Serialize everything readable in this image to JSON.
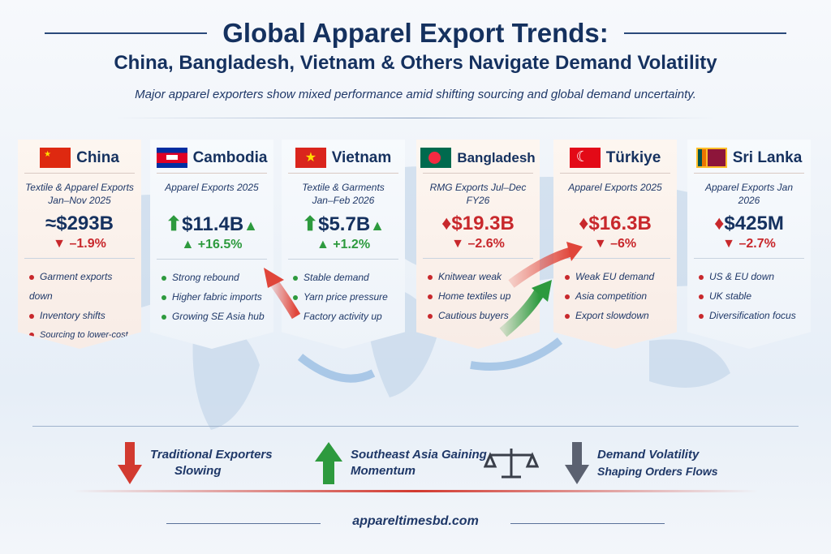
{
  "header": {
    "title": "Global Apparel Export Trends:",
    "subtitle": "China, Bangladesh, Vietnam & Others Navigate Demand Volatility",
    "tagline": "Major apparel exporters show mixed performance amid shifting sourcing and global demand uncertainty."
  },
  "cards": [
    {
      "country": "China",
      "label1": "Textile & Apparel Exports",
      "label2": "Jan–Nov 2025",
      "value": "≈$293B",
      "change": "–1.9%",
      "trend": "down",
      "bullets": [
        "Garment exports down",
        "Inventory shifts",
        "Sourcing to lower-cost hubs"
      ]
    },
    {
      "country": "Cambodia",
      "label1": "Apparel Exports 2025",
      "label2": "",
      "value": "$11.4B",
      "change": "+16.5%",
      "trend": "up",
      "bullets": [
        "Strong rebound",
        "Higher fabric imports",
        "Growing SE Asia hub"
      ]
    },
    {
      "country": "Vietnam",
      "label1": "Textile & Garments",
      "label2": "Jan–Feb 2026",
      "value": "$5.7B",
      "change": "+1.2%",
      "trend": "up",
      "bullets": [
        "Stable demand",
        "Yarn price pressure",
        "Factory activity up"
      ]
    },
    {
      "country": "Bangladesh",
      "label1": "RMG Exports Jul–Dec FY26",
      "label2": "",
      "value": "$19.3B",
      "change": "–2.6%",
      "trend": "down",
      "bullets": [
        "Knitwear weak",
        "Home textiles up",
        "Cautious buyers"
      ]
    },
    {
      "country": "Türkiye",
      "label1": "Apparel Exports 2025",
      "label2": "",
      "value": "$16.3B",
      "change": "–6%",
      "trend": "down",
      "bullets": [
        "Weak EU demand",
        "Asia competition",
        "Export slowdown"
      ]
    },
    {
      "country": "Sri Lanka",
      "label1": "Apparel Exports Jan 2026",
      "label2": "",
      "value": "$425M",
      "change": "–2.7%",
      "trend": "down",
      "bullets": [
        "US & EU down",
        "UK stable",
        "Diversification focus"
      ]
    }
  ],
  "bottom": [
    {
      "line1": "Traditional Exporters",
      "line2": "Slowing"
    },
    {
      "line1": "Southeast Asia Gaining",
      "line2": "Momentum"
    },
    {
      "line1": "Demand Volatility",
      "line2": "Shaping Orders Flows"
    }
  ],
  "footer": "appareltimesbd.com",
  "colors": {
    "red": "#c8282c",
    "green": "#2d9a3e",
    "navy": "#15315f"
  }
}
